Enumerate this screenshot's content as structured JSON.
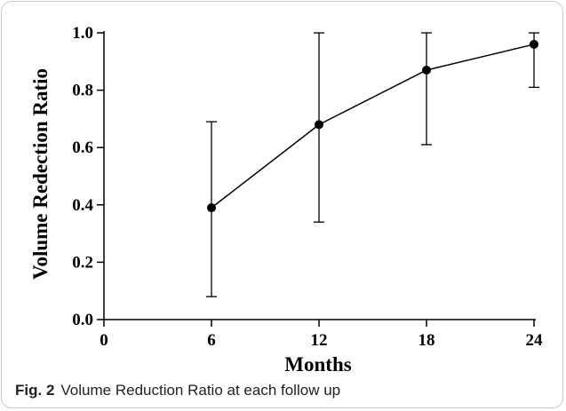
{
  "chart_data": {
    "type": "line",
    "xlabel": "Months",
    "ylabel": "Volume Redection Ratio",
    "xlim": [
      0,
      24
    ],
    "ylim": [
      0,
      1.0
    ],
    "xticks": [
      "0",
      "6",
      "12",
      "18",
      "24"
    ],
    "yticks": [
      "0.0",
      "0.2",
      "0.4",
      "0.6",
      "0.8",
      "1.0"
    ],
    "grid": false,
    "x": [
      6,
      12,
      18,
      24
    ],
    "series": [
      {
        "values": [
          0.39,
          0.68,
          0.87,
          0.96
        ],
        "error_lower": [
          0.08,
          0.34,
          0.61,
          0.81
        ],
        "error_upper": [
          0.69,
          1.0,
          1.0,
          1.0
        ]
      }
    ]
  },
  "caption": {
    "label": "Fig. 2",
    "text": "Volume Reduction Ratio at each follow up"
  }
}
